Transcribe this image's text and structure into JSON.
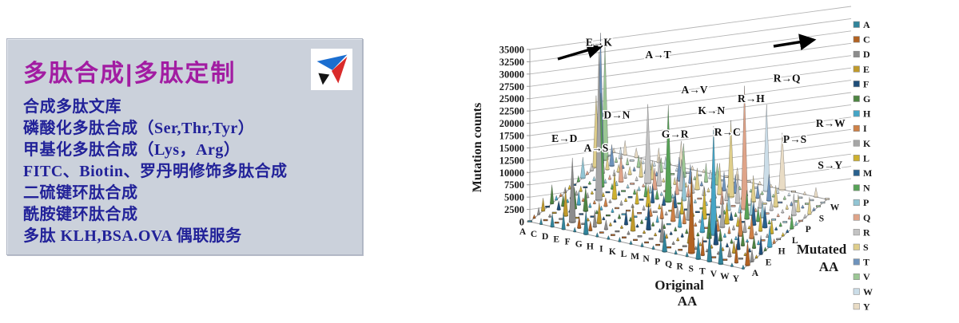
{
  "panel": {
    "title": "多肽合成|多肽定制",
    "items": [
      "合成多肽文库",
      "磷酸化多肽合成（Ser,Thr,Tyr）",
      "甲基化多肽合成（Lys，Arg）",
      "FITC、Biotin、罗丹明修饰多肽合成",
      "二硫键环肽合成",
      "酰胺键环肽合成",
      "多肽 KLH,BSA.OVA 偶联服务"
    ],
    "colors": {
      "title": "#a21ca2",
      "text": "#222299",
      "background": "#cbd1db",
      "logo_blue": "#1b6ed0",
      "logo_red": "#d92b2b",
      "logo_black": "#141414"
    }
  },
  "chart_data": {
    "type": "3d-cone",
    "ylabel": "Mutation counts",
    "xlabel": "Original AA",
    "zlabel": "Mutated AA",
    "ylim": [
      0,
      35000
    ],
    "y_ticks": [
      0,
      2500,
      5000,
      7500,
      10000,
      12500,
      15000,
      17500,
      20000,
      22500,
      25000,
      27500,
      30000,
      32500,
      35000
    ],
    "x_categories": [
      "A",
      "C",
      "D",
      "E",
      "F",
      "G",
      "H",
      "I",
      "K",
      "L",
      "M",
      "N",
      "P",
      "Q",
      "R",
      "S",
      "T",
      "V",
      "W",
      "Y"
    ],
    "z_categories": [
      "A",
      "C",
      "D",
      "E",
      "F",
      "G",
      "H",
      "I",
      "K",
      "L",
      "M",
      "N",
      "P",
      "Q",
      "R",
      "S",
      "T",
      "V",
      "W",
      "Y"
    ],
    "z_axis_shown_labels": [
      "A",
      "E",
      "H",
      "L",
      "P",
      "S",
      "W"
    ],
    "grid": true,
    "legend_position": "right",
    "legend": [
      {
        "label": "A",
        "color": "#31849b"
      },
      {
        "label": "C",
        "color": "#b26222"
      },
      {
        "label": "D",
        "color": "#8c8c8c"
      },
      {
        "label": "E",
        "color": "#c09a2b"
      },
      {
        "label": "F",
        "color": "#1f4e79"
      },
      {
        "label": "G",
        "color": "#4e8542"
      },
      {
        "label": "H",
        "color": "#45a5c6"
      },
      {
        "label": "I",
        "color": "#ce8147"
      },
      {
        "label": "K",
        "color": "#a6a6a6"
      },
      {
        "label": "L",
        "color": "#cdb02f"
      },
      {
        "label": "M",
        "color": "#29618e"
      },
      {
        "label": "N",
        "color": "#57a257"
      },
      {
        "label": "P",
        "color": "#92c5d4"
      },
      {
        "label": "Q",
        "color": "#dfa489"
      },
      {
        "label": "R",
        "color": "#c3c3c3"
      },
      {
        "label": "S",
        "color": "#dfce8b"
      },
      {
        "label": "T",
        "color": "#6e93bc"
      },
      {
        "label": "V",
        "color": "#9cc795"
      },
      {
        "label": "W",
        "color": "#cbdde8"
      },
      {
        "label": "Y",
        "color": "#e9dcc5"
      }
    ],
    "labeled_peaks": [
      {
        "from": "E",
        "to": "K",
        "label": "E→K",
        "value": 30000
      },
      {
        "from": "A",
        "to": "T",
        "label": "A→T",
        "value": 26500
      },
      {
        "from": "R",
        "to": "Q",
        "label": "R→Q",
        "value": 25000
      },
      {
        "from": "A",
        "to": "V",
        "label": "A→V",
        "value": 23500
      },
      {
        "from": "R",
        "to": "H",
        "label": "R→H",
        "value": 22000
      },
      {
        "from": "K",
        "to": "N",
        "label": "K→N",
        "value": 19500
      },
      {
        "from": "D",
        "to": "N",
        "label": "D→N",
        "value": 19000
      },
      {
        "from": "R",
        "to": "W",
        "label": "R→W",
        "value": 17500
      },
      {
        "from": "R",
        "to": "C",
        "label": "R→C",
        "value": 16500
      },
      {
        "from": "G",
        "to": "R",
        "label": "G→R",
        "value": 16000
      },
      {
        "from": "P",
        "to": "S",
        "label": "P→S",
        "value": 15500
      },
      {
        "from": "A",
        "to": "S",
        "label": "A→S",
        "value": 14500
      },
      {
        "from": "E",
        "to": "D",
        "label": "E→D",
        "value": 13000
      },
      {
        "from": "S",
        "to": "Y",
        "label": "S→Y",
        "value": 11500
      }
    ],
    "values": [
      [
        0,
        700,
        1400,
        2600,
        500,
        3800,
        900,
        600,
        1100,
        800,
        400,
        1200,
        4200,
        700,
        1500,
        14500,
        26500,
        23500,
        500,
        900
      ],
      [
        1200,
        0,
        600,
        400,
        1800,
        2200,
        700,
        500,
        900,
        1100,
        400,
        600,
        800,
        500,
        3400,
        2800,
        4300,
        1000,
        2300,
        2900
      ],
      [
        2700,
        500,
        0,
        5400,
        600,
        4300,
        2900,
        700,
        1000,
        600,
        400,
        19000,
        800,
        900,
        1200,
        1500,
        700,
        1400,
        500,
        1900
      ],
      [
        3400,
        600,
        13000,
        0,
        500,
        4800,
        900,
        700,
        30000,
        800,
        500,
        1100,
        900,
        5800,
        1300,
        1600,
        800,
        2400,
        600,
        700
      ],
      [
        900,
        2400,
        500,
        600,
        0,
        700,
        800,
        1700,
        600,
        5300,
        900,
        500,
        700,
        400,
        800,
        3900,
        1000,
        1900,
        800,
        2900
      ],
      [
        4800,
        1900,
        3400,
        4300,
        600,
        0,
        800,
        500,
        900,
        700,
        400,
        1000,
        800,
        600,
        16000,
        3800,
        900,
        2900,
        2400,
        700
      ],
      [
        800,
        500,
        1900,
        700,
        600,
        900,
        0,
        500,
        700,
        2900,
        400,
        2700,
        1400,
        4300,
        5800,
        800,
        600,
        500,
        700,
        5300
      ],
      [
        700,
        400,
        500,
        600,
        2900,
        800,
        500,
        0,
        900,
        4300,
        3800,
        1900,
        700,
        500,
        600,
        1400,
        4800,
        6800,
        400,
        800
      ],
      [
        900,
        500,
        700,
        5300,
        600,
        800,
        700,
        1700,
        0,
        1000,
        1900,
        19500,
        800,
        3400,
        6300,
        900,
        3800,
        700,
        500,
        600
      ],
      [
        700,
        500,
        400,
        600,
        5300,
        800,
        1400,
        2900,
        700,
        0,
        3400,
        500,
        5800,
        2400,
        1900,
        4300,
        900,
        3800,
        1700,
        600
      ],
      [
        800,
        400,
        500,
        600,
        700,
        900,
        500,
        4800,
        2400,
        3400,
        0,
        600,
        700,
        500,
        1900,
        800,
        3800,
        4300,
        400,
        500
      ],
      [
        700,
        500,
        4800,
        900,
        600,
        800,
        3400,
        2900,
        5300,
        700,
        400,
        0,
        800,
        600,
        900,
        6300,
        3800,
        700,
        500,
        2400
      ],
      [
        4300,
        500,
        600,
        700,
        800,
        900,
        2900,
        700,
        600,
        6300,
        500,
        800,
        0,
        3400,
        2400,
        15500,
        3800,
        700,
        600,
        500
      ],
      [
        800,
        400,
        500,
        2400,
        600,
        700,
        4300,
        500,
        4800,
        2900,
        600,
        800,
        3400,
        0,
        5800,
        900,
        700,
        600,
        500,
        700
      ],
      [
        900,
        16500,
        600,
        700,
        500,
        4800,
        22000,
        2400,
        6300,
        4300,
        1700,
        800,
        1900,
        25000,
        0,
        5300,
        2900,
        700,
        17500,
        600
      ],
      [
        4300,
        3800,
        600,
        700,
        4800,
        2400,
        800,
        1400,
        900,
        1900,
        500,
        5800,
        3400,
        700,
        2900,
        0,
        5300,
        600,
        1100,
        11500
      ],
      [
        5800,
        500,
        600,
        700,
        800,
        900,
        700,
        5300,
        2400,
        600,
        4800,
        2900,
        3400,
        500,
        1900,
        4300,
        0,
        700,
        600,
        500
      ],
      [
        5300,
        500,
        1900,
        2400,
        3400,
        2900,
        600,
        4800,
        700,
        3800,
        4300,
        800,
        500,
        600,
        700,
        900,
        800,
        0,
        500,
        600
      ],
      [
        700,
        3800,
        500,
        600,
        800,
        2400,
        900,
        500,
        700,
        2900,
        600,
        800,
        500,
        700,
        4300,
        3400,
        600,
        500,
        0,
        1900
      ],
      [
        800,
        4800,
        2400,
        600,
        3800,
        700,
        4300,
        900,
        500,
        700,
        600,
        2900,
        800,
        500,
        700,
        3400,
        600,
        500,
        400,
        0
      ]
    ]
  }
}
